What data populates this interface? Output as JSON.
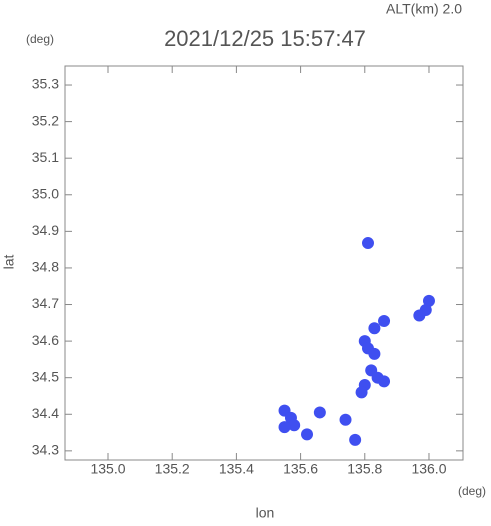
{
  "chart_data": {
    "type": "scatter",
    "title": "2021/12/25 15:57:47",
    "altitude_label": "ALT(km) 2.0",
    "y_unit": "(deg)",
    "x_unit": "(deg)",
    "x_label": "lon",
    "y_label": "lat",
    "xlim": [
      134.866,
      136.106
    ],
    "ylim": [
      34.275,
      35.352
    ],
    "xticks": [
      {
        "value": 135.0,
        "label": "135.0"
      },
      {
        "value": 135.2,
        "label": "135.2"
      },
      {
        "value": 135.4,
        "label": "135.4"
      },
      {
        "value": 135.6,
        "label": "135.6"
      },
      {
        "value": 135.8,
        "label": "135.8"
      },
      {
        "value": 136.0,
        "label": "136.0"
      }
    ],
    "yticks": [
      {
        "value": 34.3,
        "label": "34.3"
      },
      {
        "value": 34.4,
        "label": "34.4"
      },
      {
        "value": 34.5,
        "label": "34.5"
      },
      {
        "value": 34.6,
        "label": "34.6"
      },
      {
        "value": 34.7,
        "label": "34.7"
      },
      {
        "value": 34.8,
        "label": "34.8"
      },
      {
        "value": 34.9,
        "label": "34.9"
      },
      {
        "value": 35.0,
        "label": "35.0"
      },
      {
        "value": 35.1,
        "label": "35.1"
      },
      {
        "value": 35.2,
        "label": "35.2"
      },
      {
        "value": 35.3,
        "label": "35.3"
      }
    ],
    "x": [
      135.81,
      136.0,
      135.99,
      135.97,
      135.86,
      135.83,
      135.8,
      135.81,
      135.83,
      135.82,
      135.84,
      135.86,
      135.8,
      135.79,
      135.55,
      135.57,
      135.58,
      135.55,
      135.66,
      135.62,
      135.74,
      135.77
    ],
    "y": [
      34.868,
      34.71,
      34.685,
      34.67,
      34.655,
      34.635,
      34.6,
      34.58,
      34.565,
      34.52,
      34.5,
      34.49,
      34.48,
      34.46,
      34.41,
      34.39,
      34.37,
      34.365,
      34.405,
      34.345,
      34.385,
      34.33
    ],
    "color": "#3f4ff0"
  }
}
